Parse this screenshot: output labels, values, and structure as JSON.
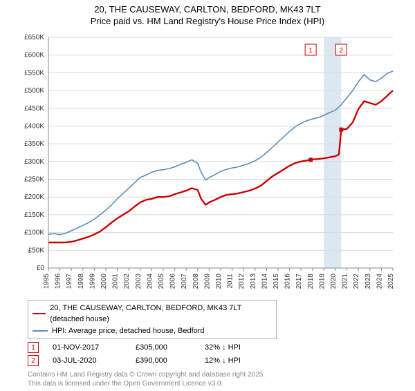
{
  "title_line1": "20, THE CAUSEWAY, CARLTON, BEDFORD, MK43 7LT",
  "title_line2": "Price paid vs. HM Land Registry's House Price Index (HPI)",
  "y_axis": {
    "min": 0,
    "max": 650000,
    "step": 50000,
    "labels": [
      "£0",
      "£50K",
      "£100K",
      "£150K",
      "£200K",
      "£250K",
      "£300K",
      "£350K",
      "£400K",
      "£450K",
      "£500K",
      "£550K",
      "£600K",
      "£650K"
    ]
  },
  "x_axis": {
    "min": 1995,
    "max": 2025,
    "step": 1,
    "labels": [
      "1995",
      "1996",
      "1997",
      "1998",
      "1999",
      "2000",
      "2001",
      "2002",
      "2003",
      "2004",
      "2005",
      "2006",
      "2007",
      "2008",
      "2009",
      "2010",
      "2011",
      "2012",
      "2013",
      "2014",
      "2015",
      "2016",
      "2017",
      "2018",
      "2019",
      "2020",
      "2021",
      "2022",
      "2023",
      "2024",
      "2025"
    ]
  },
  "colors": {
    "grid": "#d9d9d9",
    "axis_text": "#333333",
    "series_red": "#cc0000",
    "series_blue": "#5b8db8",
    "band_fill": "#dce7f2",
    "badge1_border": "#cc0000",
    "badge1_text": "#cc0000",
    "badge2_border": "#cc0000",
    "badge2_text": "#cc0000"
  },
  "band": {
    "x_start": 2019.0,
    "x_end": 2020.5
  },
  "markers": [
    {
      "label": "1",
      "x": 2017.84,
      "y": 305000
    },
    {
      "label": "2",
      "x": 2020.5,
      "y": 390000
    }
  ],
  "series": [
    {
      "name": "price_paid",
      "color": "#cc0000",
      "width": 2.4,
      "points": [
        [
          1995,
          72000
        ],
        [
          1995.5,
          72000
        ],
        [
          1996,
          72000
        ],
        [
          1996.5,
          72000
        ],
        [
          1997,
          74000
        ],
        [
          1997.5,
          78000
        ],
        [
          1998,
          83000
        ],
        [
          1998.5,
          88000
        ],
        [
          1999,
          95000
        ],
        [
          1999.5,
          103000
        ],
        [
          2000,
          115000
        ],
        [
          2000.5,
          128000
        ],
        [
          2001,
          140000
        ],
        [
          2001.5,
          150000
        ],
        [
          2002,
          160000
        ],
        [
          2002.5,
          173000
        ],
        [
          2003,
          185000
        ],
        [
          2003.5,
          192000
        ],
        [
          2004,
          195000
        ],
        [
          2004.5,
          200000
        ],
        [
          2005,
          200000
        ],
        [
          2005.5,
          202000
        ],
        [
          2006,
          208000
        ],
        [
          2006.5,
          213000
        ],
        [
          2007,
          218000
        ],
        [
          2007.5,
          225000
        ],
        [
          2008,
          220000
        ],
        [
          2008.3,
          195000
        ],
        [
          2008.7,
          178000
        ],
        [
          2009,
          185000
        ],
        [
          2009.5,
          192000
        ],
        [
          2010,
          200000
        ],
        [
          2010.5,
          206000
        ],
        [
          2011,
          208000
        ],
        [
          2011.5,
          210000
        ],
        [
          2012,
          214000
        ],
        [
          2012.5,
          218000
        ],
        [
          2013,
          224000
        ],
        [
          2013.5,
          232000
        ],
        [
          2014,
          245000
        ],
        [
          2014.5,
          258000
        ],
        [
          2015,
          268000
        ],
        [
          2015.5,
          278000
        ],
        [
          2016,
          288000
        ],
        [
          2016.5,
          296000
        ],
        [
          2017,
          300000
        ],
        [
          2017.5,
          303000
        ],
        [
          2017.84,
          305000
        ],
        [
          2018,
          306000
        ],
        [
          2018.5,
          307000
        ],
        [
          2019,
          309000
        ],
        [
          2019.5,
          312000
        ],
        [
          2020,
          315000
        ],
        [
          2020.3,
          320000
        ],
        [
          2020.5,
          390000
        ],
        [
          2021,
          392000
        ],
        [
          2021.5,
          410000
        ],
        [
          2022,
          448000
        ],
        [
          2022.5,
          470000
        ],
        [
          2023,
          465000
        ],
        [
          2023.5,
          460000
        ],
        [
          2024,
          470000
        ],
        [
          2024.5,
          485000
        ],
        [
          2025,
          500000
        ]
      ]
    },
    {
      "name": "hpi",
      "color": "#5b8db8",
      "width": 1.6,
      "points": [
        [
          1995,
          95000
        ],
        [
          1995.5,
          97000
        ],
        [
          1996,
          94000
        ],
        [
          1996.5,
          98000
        ],
        [
          1997,
          105000
        ],
        [
          1997.5,
          112000
        ],
        [
          1998,
          120000
        ],
        [
          1998.5,
          128000
        ],
        [
          1999,
          138000
        ],
        [
          1999.5,
          150000
        ],
        [
          2000,
          163000
        ],
        [
          2000.5,
          178000
        ],
        [
          2001,
          195000
        ],
        [
          2001.5,
          210000
        ],
        [
          2002,
          225000
        ],
        [
          2002.5,
          240000
        ],
        [
          2003,
          255000
        ],
        [
          2003.5,
          262000
        ],
        [
          2004,
          270000
        ],
        [
          2004.5,
          275000
        ],
        [
          2005,
          277000
        ],
        [
          2005.5,
          280000
        ],
        [
          2006,
          285000
        ],
        [
          2006.5,
          292000
        ],
        [
          2007,
          298000
        ],
        [
          2007.5,
          305000
        ],
        [
          2008,
          295000
        ],
        [
          2008.3,
          270000
        ],
        [
          2008.7,
          248000
        ],
        [
          2009,
          255000
        ],
        [
          2009.5,
          263000
        ],
        [
          2010,
          272000
        ],
        [
          2010.5,
          278000
        ],
        [
          2011,
          282000
        ],
        [
          2011.5,
          285000
        ],
        [
          2012,
          290000
        ],
        [
          2012.5,
          295000
        ],
        [
          2013,
          302000
        ],
        [
          2013.5,
          312000
        ],
        [
          2014,
          325000
        ],
        [
          2014.5,
          340000
        ],
        [
          2015,
          355000
        ],
        [
          2015.5,
          370000
        ],
        [
          2016,
          385000
        ],
        [
          2016.5,
          398000
        ],
        [
          2017,
          408000
        ],
        [
          2017.5,
          415000
        ],
        [
          2018,
          420000
        ],
        [
          2018.5,
          424000
        ],
        [
          2019,
          430000
        ],
        [
          2019.5,
          438000
        ],
        [
          2020,
          445000
        ],
        [
          2020.5,
          460000
        ],
        [
          2021,
          480000
        ],
        [
          2021.5,
          500000
        ],
        [
          2022,
          525000
        ],
        [
          2022.5,
          545000
        ],
        [
          2023,
          530000
        ],
        [
          2023.5,
          525000
        ],
        [
          2024,
          535000
        ],
        [
          2024.5,
          548000
        ],
        [
          2025,
          555000
        ]
      ]
    }
  ],
  "legend": [
    {
      "color": "#cc0000",
      "width": 2.4,
      "label": "20, THE CAUSEWAY, CARLTON, BEDFORD, MK43 7LT (detached house)"
    },
    {
      "color": "#5b8db8",
      "width": 1.6,
      "label": "HPI: Average price, detached house, Bedford"
    }
  ],
  "sales": [
    {
      "badge": "1",
      "date": "01-NOV-2017",
      "price": "£305,000",
      "delta": "32% ↓ HPI"
    },
    {
      "badge": "2",
      "date": "03-JUL-2020",
      "price": "£390,000",
      "delta": "12% ↓ HPI"
    }
  ],
  "footer_line1": "Contains HM Land Registry data © Crown copyright and database right 2025.",
  "footer_line2": "This data is licensed under the Open Government Licence v3.0."
}
